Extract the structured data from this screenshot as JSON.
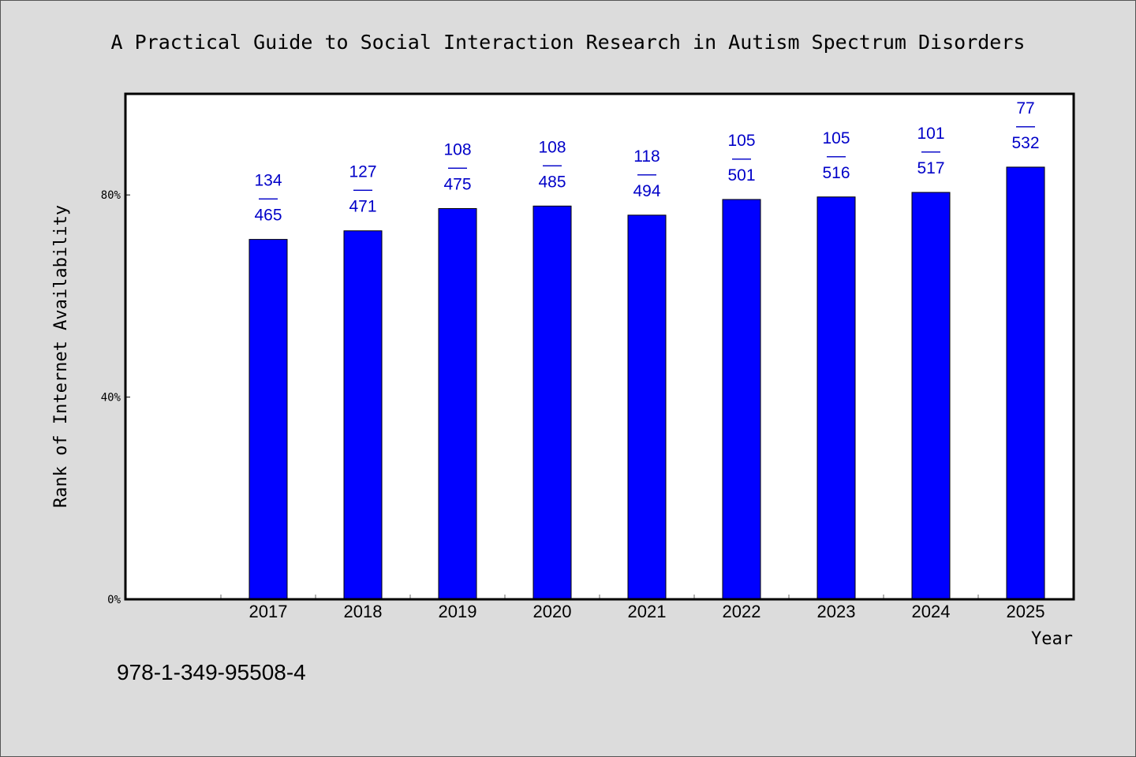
{
  "chart_data": {
    "type": "bar",
    "title": "A Practical Guide to Social Interaction Research in Autism Spectrum Disorders",
    "xlabel": "Year",
    "ylabel": "Rank of Internet Availability",
    "categories": [
      "2017",
      "2018",
      "2019",
      "2020",
      "2021",
      "2022",
      "2023",
      "2024",
      "2025"
    ],
    "series": [
      {
        "values": [
          71.2,
          72.9,
          77.3,
          77.8,
          76.0,
          79.1,
          79.6,
          80.5,
          85.5
        ]
      }
    ],
    "bar_labels": [
      {
        "top": "134",
        "sep": "——",
        "bottom": "465"
      },
      {
        "top": "127",
        "sep": "——",
        "bottom": "471"
      },
      {
        "top": "108",
        "sep": "——",
        "bottom": "475"
      },
      {
        "top": "108",
        "sep": "——",
        "bottom": "485"
      },
      {
        "top": "118",
        "sep": "——",
        "bottom": "494"
      },
      {
        "top": "105",
        "sep": "——",
        "bottom": "501"
      },
      {
        "top": "105",
        "sep": "——",
        "bottom": "516"
      },
      {
        "top": "101",
        "sep": "——",
        "bottom": "517"
      },
      {
        "top": "77",
        "sep": "——",
        "bottom": "532"
      }
    ],
    "yticks": [
      {
        "value": 0,
        "label": "0%"
      },
      {
        "value": 40,
        "label": "40%"
      },
      {
        "value": 80,
        "label": "80%"
      }
    ],
    "ylim": [
      0,
      100
    ],
    "grid": false,
    "bar_color": "#0000ff",
    "label_color": "#0000c8"
  },
  "footer": {
    "isbn": "978-1-349-95508-4"
  },
  "colors": {
    "background": "#dcdcdc",
    "plot_background": "#ffffff"
  }
}
